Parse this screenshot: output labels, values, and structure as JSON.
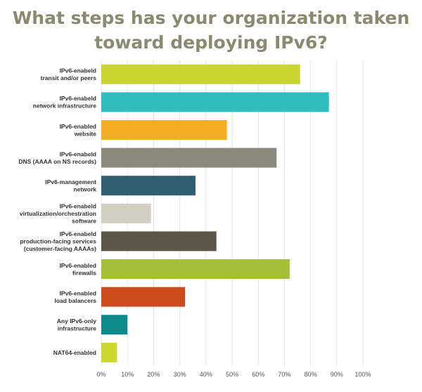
{
  "title": "What steps has your organization taken toward deploying IPv6?",
  "chart_data": {
    "type": "bar",
    "orientation": "horizontal",
    "title": "What steps has your organization taken toward deploying IPv6?",
    "xlabel": "",
    "ylabel": "",
    "xlim": [
      0,
      100
    ],
    "x_unit": "%",
    "grid": true,
    "categories": [
      [
        "IPv6-enabeld",
        "transit and/or peers"
      ],
      [
        "IPv6-enabeld",
        "network infrastructure"
      ],
      [
        "IPv6-enabled",
        "website"
      ],
      [
        "IPv6-enabeld",
        "DNS (AAAA on NS records)"
      ],
      [
        "IPv6-management",
        "network"
      ],
      [
        "IPv6-enabeld",
        "virtualization/orchestration",
        "software"
      ],
      [
        "IPv6-enabeld",
        "production-facing services",
        "(customer-facing AAAAs)"
      ],
      [
        "IPv6-enabled",
        "firewalls"
      ],
      [
        "IPv6-enabled",
        "load balancers"
      ],
      [
        "Any IPv6-only",
        "infrastructure"
      ],
      [
        "NAT64-enabled"
      ]
    ],
    "values": [
      76,
      87,
      48,
      67,
      36,
      19,
      44,
      72,
      32,
      10,
      6
    ],
    "colors": [
      "#c9d632",
      "#2fbdbf",
      "#f5ae22",
      "#8a8a7e",
      "#2f5f6e",
      "#d1cfc4",
      "#5a5749",
      "#a6bf39",
      "#cd4a1d",
      "#0f8a8a",
      "#ccd82e"
    ],
    "x_ticks": [
      "0%",
      "10%",
      "20%",
      "30%",
      "40%",
      "50%",
      "60%",
      "70%",
      "80%",
      "90%",
      "100%"
    ]
  }
}
